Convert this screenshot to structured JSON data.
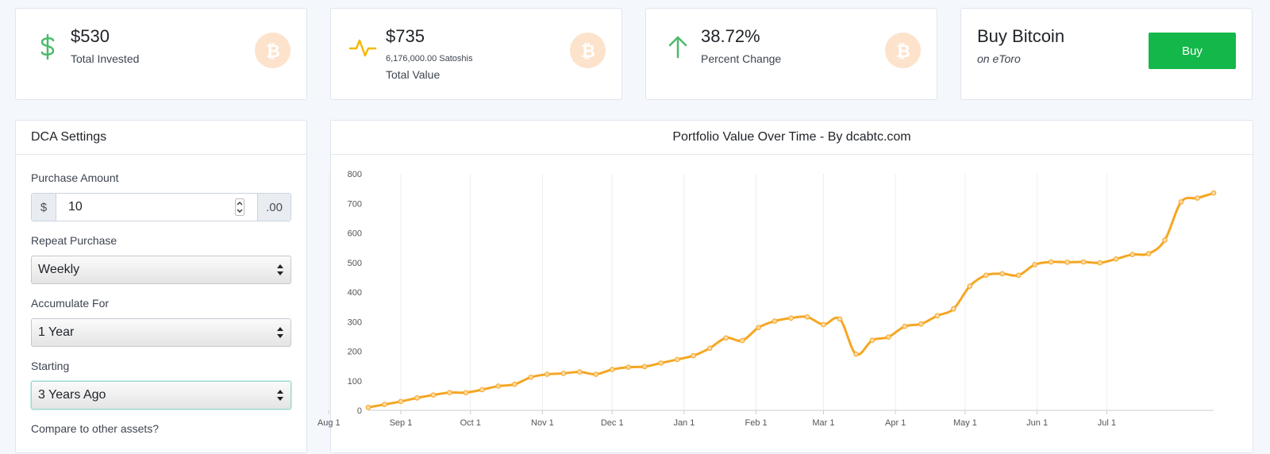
{
  "stats": [
    {
      "value": "$530",
      "label": "Total Invested",
      "icon": "dollar-icon"
    },
    {
      "value": "$735",
      "sub": "6,176,000.00 Satoshis",
      "label": "Total Value",
      "icon": "pulse-icon"
    },
    {
      "value": "38.72%",
      "label": "Percent Change",
      "icon": "arrow-up-icon"
    }
  ],
  "buy_card": {
    "title": "Buy Bitcoin",
    "subtitle": "on eToro",
    "button_label": "Buy"
  },
  "settings": {
    "title": "DCA Settings",
    "purchase_amount": {
      "label": "Purchase Amount",
      "prefix": "$",
      "value": "10",
      "suffix": ".00"
    },
    "repeat": {
      "label": "Repeat Purchase",
      "selected": "Weekly"
    },
    "accumulate": {
      "label": "Accumulate For",
      "selected": "1 Year"
    },
    "starting": {
      "label": "Starting",
      "selected": "3 Years Ago"
    },
    "compare": {
      "label": "Compare to other assets?"
    }
  },
  "colors": {
    "accent": "#14b84a",
    "line": "#f5a623",
    "btc": "#fde3cc",
    "icon_green": "#4cbb6c",
    "icon_yellow": "#f5b800"
  },
  "chart_data": {
    "type": "line",
    "title": "Portfolio Value Over Time - By dcabtc.com",
    "x_ticks": [
      "Sep 1",
      "Oct 1",
      "Nov 1",
      "Dec 1",
      "Jan 1",
      "Feb 1",
      "Mar 1",
      "Apr 1",
      "May 1",
      "Jun 1",
      "Jul 1",
      "Aug 1"
    ],
    "y_ticks": [
      0,
      100,
      200,
      300,
      400,
      500,
      600,
      700,
      800
    ],
    "ylim": [
      0,
      800
    ],
    "x_start": "2019-08-18",
    "x_end": "2020-08-16",
    "series": [
      {
        "name": "Portfolio Value",
        "x": [
          "2019-08-18",
          "2019-08-25",
          "2019-09-01",
          "2019-09-08",
          "2019-09-15",
          "2019-09-22",
          "2019-09-29",
          "2019-10-06",
          "2019-10-13",
          "2019-10-20",
          "2019-10-27",
          "2019-11-03",
          "2019-11-10",
          "2019-11-17",
          "2019-11-24",
          "2019-12-01",
          "2019-12-08",
          "2019-12-15",
          "2019-12-22",
          "2019-12-29",
          "2020-01-05",
          "2020-01-12",
          "2020-01-19",
          "2020-01-26",
          "2020-02-02",
          "2020-02-09",
          "2020-02-16",
          "2020-02-23",
          "2020-03-01",
          "2020-03-08",
          "2020-03-15",
          "2020-03-22",
          "2020-03-29",
          "2020-04-05",
          "2020-04-12",
          "2020-04-19",
          "2020-04-26",
          "2020-05-03",
          "2020-05-10",
          "2020-05-17",
          "2020-05-24",
          "2020-05-31",
          "2020-06-07",
          "2020-06-14",
          "2020-06-21",
          "2020-06-28",
          "2020-07-05",
          "2020-07-12",
          "2020-07-19",
          "2020-07-26",
          "2020-08-02",
          "2020-08-09",
          "2020-08-16"
        ],
        "y": [
          10,
          20,
          30,
          42,
          52,
          60,
          60,
          70,
          82,
          88,
          112,
          122,
          125,
          130,
          122,
          138,
          146,
          148,
          160,
          172,
          185,
          210,
          245,
          236,
          280,
          302,
          312,
          316,
          290,
          309,
          190,
          237,
          248,
          284,
          292,
          320,
          343,
          420,
          457,
          462,
          457,
          493,
          502,
          501,
          502,
          499,
          512,
          527,
          530,
          576,
          705,
          718,
          735
        ]
      }
    ]
  }
}
